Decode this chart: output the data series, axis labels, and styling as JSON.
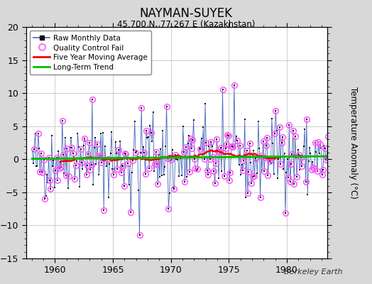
{
  "title": "NAYMAN-SUYEK",
  "subtitle": "45.700 N, 77.267 E (Kazakhstan)",
  "ylabel": "Temperature Anomaly (°C)",
  "watermark": "Berkeley Earth",
  "xlim": [
    1957.5,
    1983.5
  ],
  "ylim": [
    -15,
    20
  ],
  "yticks": [
    -15,
    -10,
    -5,
    0,
    5,
    10,
    15,
    20
  ],
  "xticks": [
    1960,
    1965,
    1970,
    1975,
    1980
  ],
  "bg_color": "#d8d8d8",
  "plot_bg_color": "#ffffff",
  "raw_line_color": "#4466bb",
  "raw_marker_color": "#111111",
  "qc_fail_color": "#ff55ff",
  "moving_avg_color": "#ee0000",
  "trend_color": "#00bb00",
  "trend_slope": 0.015,
  "trend_intercept_at_1970": 0.25,
  "seed": 42,
  "start_year": 1958,
  "end_year": 1983,
  "noise_std": 2.8,
  "qc_fail_prob": 0.5
}
